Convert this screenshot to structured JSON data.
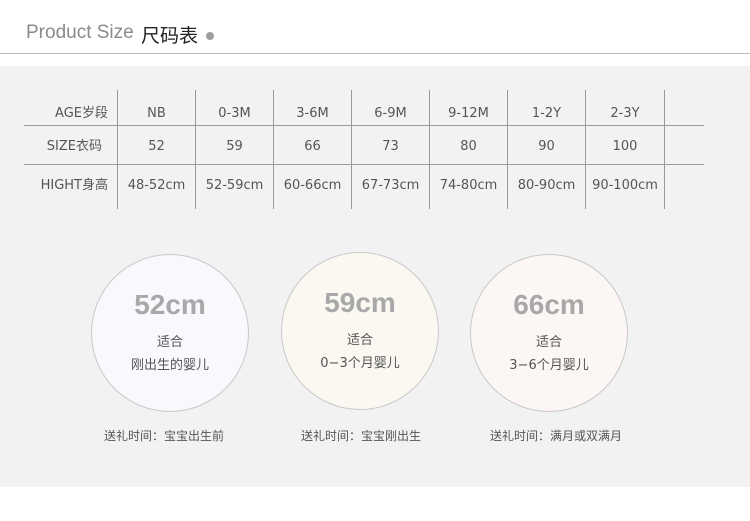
{
  "header": {
    "title_en": "Product Size",
    "title_zh": "尺码表"
  },
  "table": {
    "rows": [
      {
        "label": "AGE岁段",
        "cells": [
          "NB",
          "0-3M",
          "3-6M",
          "6-9M",
          "9-12M",
          "1-2Y",
          "2-3Y"
        ]
      },
      {
        "label": "SIZE衣码",
        "cells": [
          "52",
          "59",
          "66",
          "73",
          "80",
          "90",
          "100"
        ]
      },
      {
        "label": "HIGHT身高",
        "cells": [
          "48-52cm",
          "52-59cm",
          "60-66cm",
          "67-73cm",
          "74-80cm",
          "80-90cm",
          "90-100cm"
        ]
      }
    ]
  },
  "circles": [
    {
      "size": "52cm",
      "fit": "适合",
      "desc": "刚出生的婴儿",
      "gift": "送礼时间：宝宝出生前",
      "bg": "#f8f8fd"
    },
    {
      "size": "59cm",
      "fit": "适合",
      "desc": "0−3个月婴儿",
      "gift": "送礼时间：宝宝刚出生",
      "bg": "#fbf8f2"
    },
    {
      "size": "66cm",
      "fit": "适合",
      "desc": "3−6个月婴儿",
      "gift": "送礼时间：满月或双满月",
      "bg": "#fcf6f5"
    }
  ]
}
